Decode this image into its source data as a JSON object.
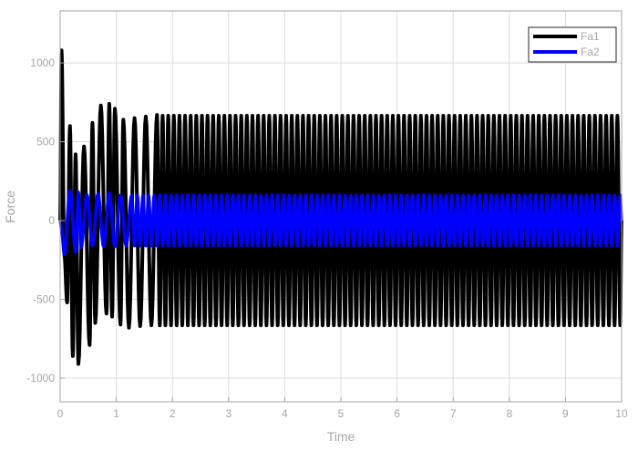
{
  "chart_data": {
    "type": "line",
    "title": "",
    "xlabel": "Time",
    "ylabel": "Force",
    "xlim": [
      0,
      10
    ],
    "ylim": [
      -1150,
      1330
    ],
    "xticks": [
      0,
      1,
      2,
      3,
      4,
      5,
      6,
      7,
      8,
      9,
      10
    ],
    "xtick_labels": [
      "0",
      "1",
      "2",
      "3",
      "4",
      "5",
      "6",
      "7",
      "8",
      "9",
      "10"
    ],
    "yticks": [
      -1000,
      -500,
      0,
      500,
      1000
    ],
    "ytick_labels": [
      "-1000",
      "-500",
      "0",
      "500",
      "1000"
    ],
    "grid": true,
    "legend_position": "top-right",
    "oscillation_frequency_hz": 10,
    "series": [
      {
        "name": "Fa1",
        "color": "#000000",
        "steady_amplitude": 665,
        "peaks": [
          {
            "t": 0.025,
            "v": 1080
          },
          {
            "t": 0.075,
            "v": -220
          },
          {
            "t": 0.125,
            "v": -520
          },
          {
            "t": 0.175,
            "v": 600
          },
          {
            "t": 0.225,
            "v": -860
          },
          {
            "t": 0.275,
            "v": 420
          },
          {
            "t": 0.325,
            "v": -910
          },
          {
            "t": 0.425,
            "v": 470
          },
          {
            "t": 0.525,
            "v": -790
          },
          {
            "t": 0.575,
            "v": 620
          },
          {
            "t": 0.625,
            "v": -650
          },
          {
            "t": 0.725,
            "v": 730
          },
          {
            "t": 0.825,
            "v": -590
          },
          {
            "t": 0.875,
            "v": 740
          },
          {
            "t": 0.925,
            "v": -610
          },
          {
            "t": 0.975,
            "v": 710
          },
          {
            "t": 1.075,
            "v": -660
          },
          {
            "t": 1.125,
            "v": 640
          },
          {
            "t": 1.225,
            "v": -680
          },
          {
            "t": 1.325,
            "v": 650
          },
          {
            "t": 1.425,
            "v": -670
          },
          {
            "t": 1.525,
            "v": 660
          },
          {
            "t": 1.625,
            "v": -665
          },
          {
            "t": 1.725,
            "v": 670
          }
        ]
      },
      {
        "name": "Fa2",
        "color": "#0000ff",
        "steady_amplitude": 160,
        "peaks": [
          {
            "t": 0.025,
            "v": -60
          },
          {
            "t": 0.075,
            "v": -215
          },
          {
            "t": 0.175,
            "v": 190
          },
          {
            "t": 0.275,
            "v": -200
          },
          {
            "t": 0.325,
            "v": 180
          },
          {
            "t": 0.375,
            "v": -170
          },
          {
            "t": 0.475,
            "v": 165
          },
          {
            "t": 0.575,
            "v": -160
          },
          {
            "t": 0.675,
            "v": 170
          },
          {
            "t": 0.775,
            "v": -165
          },
          {
            "t": 0.875,
            "v": 175
          },
          {
            "t": 0.975,
            "v": -165
          },
          {
            "t": 1.075,
            "v": 160
          },
          {
            "t": 1.175,
            "v": -160
          },
          {
            "t": 1.275,
            "v": 160
          }
        ]
      }
    ]
  },
  "colors": {
    "background": "#ffffff",
    "axes_background": "#ffffff",
    "axis_color": "#a6a6a6",
    "grid_color": "#dcdcdc"
  }
}
